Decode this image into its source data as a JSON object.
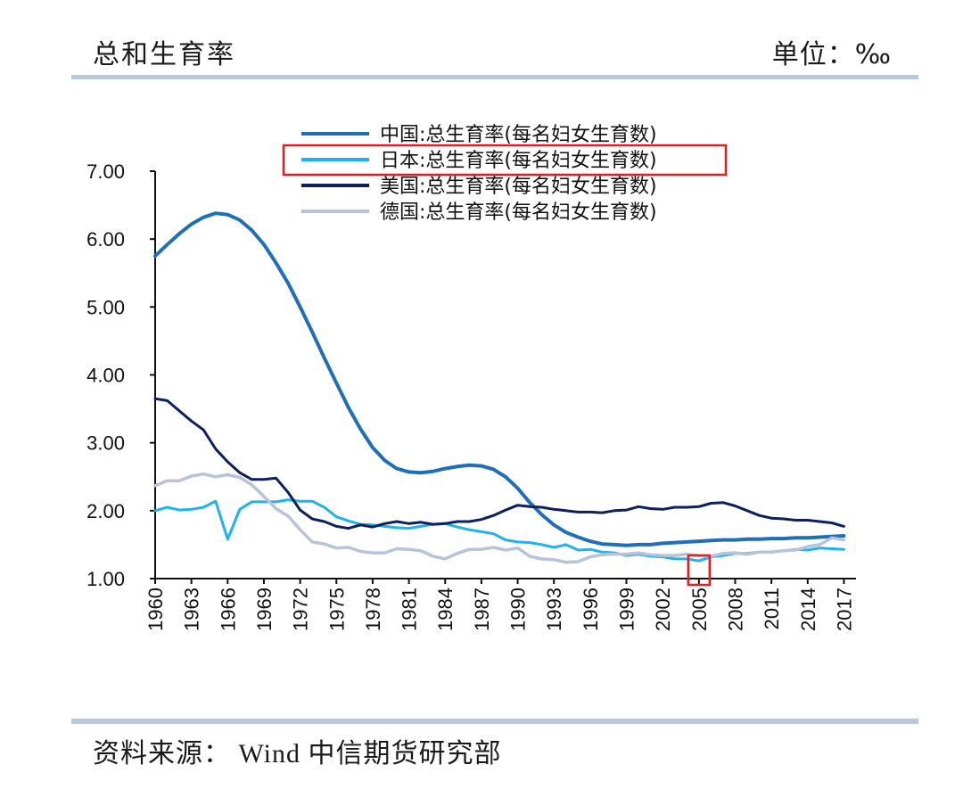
{
  "header": {
    "title": "总和生育率",
    "unit": "单位：‰"
  },
  "footer": {
    "source": "资料来源：  Wind  中信期货研究部"
  },
  "highlight_boxes": [
    {
      "target": "legend",
      "series": "日本:总生育率(每名妇女生育数)",
      "color": "#e02020"
    },
    {
      "target": "x-axis",
      "year": 2005,
      "color": "#e02020"
    }
  ],
  "chart_data": {
    "type": "line",
    "title": "总和生育率",
    "xlabel": "",
    "ylabel": "",
    "ylim": [
      1.0,
      7.0
    ],
    "yticks": [
      "1.00",
      "2.00",
      "3.00",
      "4.00",
      "5.00",
      "6.00",
      "7.00"
    ],
    "xlim": [
      1960,
      2018
    ],
    "xticks": [
      "1960",
      "1963",
      "1966",
      "1969",
      "1972",
      "1975",
      "1978",
      "1981",
      "1984",
      "1987",
      "1990",
      "1993",
      "1996",
      "1999",
      "2002",
      "2005",
      "2008",
      "2011",
      "2014",
      "2017"
    ],
    "legend_position": "top-center",
    "series": [
      {
        "name": "中国:总生育率(每名妇女生育数)",
        "color": "#1f6fb8",
        "width": 4,
        "x": [
          1960,
          1961,
          1962,
          1963,
          1964,
          1965,
          1966,
          1967,
          1968,
          1969,
          1970,
          1971,
          1972,
          1973,
          1974,
          1975,
          1976,
          1977,
          1978,
          1979,
          1980,
          1981,
          1982,
          1983,
          1984,
          1985,
          1986,
          1987,
          1988,
          1989,
          1990,
          1991,
          1992,
          1993,
          1994,
          1995,
          1996,
          1997,
          1998,
          1999,
          2000,
          2001,
          2002,
          2003,
          2004,
          2005,
          2006,
          2007,
          2008,
          2009,
          2010,
          2011,
          2012,
          2013,
          2014,
          2015,
          2016,
          2017
        ],
        "values": [
          5.75,
          5.92,
          6.08,
          6.22,
          6.32,
          6.38,
          6.36,
          6.28,
          6.13,
          5.92,
          5.65,
          5.35,
          5.0,
          4.63,
          4.25,
          3.88,
          3.52,
          3.2,
          2.93,
          2.74,
          2.62,
          2.57,
          2.56,
          2.58,
          2.62,
          2.65,
          2.67,
          2.66,
          2.61,
          2.5,
          2.33,
          2.12,
          1.94,
          1.79,
          1.68,
          1.61,
          1.55,
          1.51,
          1.5,
          1.49,
          1.5,
          1.5,
          1.52,
          1.53,
          1.54,
          1.55,
          1.56,
          1.57,
          1.57,
          1.58,
          1.58,
          1.59,
          1.59,
          1.6,
          1.6,
          1.61,
          1.62,
          1.63
        ]
      },
      {
        "name": "日本:总生育率(每名妇女生育数)",
        "color": "#1eb3ea",
        "width": 3,
        "x": [
          1960,
          1961,
          1962,
          1963,
          1964,
          1965,
          1966,
          1967,
          1968,
          1969,
          1970,
          1971,
          1972,
          1973,
          1974,
          1975,
          1976,
          1977,
          1978,
          1979,
          1980,
          1981,
          1982,
          1983,
          1984,
          1985,
          1986,
          1987,
          1988,
          1989,
          1990,
          1991,
          1992,
          1993,
          1994,
          1995,
          1996,
          1997,
          1998,
          1999,
          2000,
          2001,
          2002,
          2003,
          2004,
          2005,
          2006,
          2007,
          2008,
          2009,
          2010,
          2011,
          2012,
          2013,
          2014,
          2015,
          2016,
          2017
        ],
        "values": [
          2.0,
          2.05,
          2.01,
          2.02,
          2.05,
          2.14,
          1.58,
          2.02,
          2.13,
          2.13,
          2.13,
          2.16,
          2.14,
          2.14,
          2.05,
          1.91,
          1.85,
          1.8,
          1.79,
          1.77,
          1.75,
          1.74,
          1.77,
          1.8,
          1.81,
          1.76,
          1.72,
          1.69,
          1.66,
          1.57,
          1.54,
          1.53,
          1.5,
          1.46,
          1.5,
          1.42,
          1.43,
          1.39,
          1.38,
          1.34,
          1.36,
          1.33,
          1.32,
          1.29,
          1.29,
          1.26,
          1.32,
          1.34,
          1.37,
          1.37,
          1.39,
          1.39,
          1.41,
          1.43,
          1.42,
          1.45,
          1.44,
          1.43
        ]
      },
      {
        "name": "美国:总生育率(每名妇女生育数)",
        "color": "#0d1f5c",
        "width": 3,
        "x": [
          1960,
          1961,
          1962,
          1963,
          1964,
          1965,
          1966,
          1967,
          1968,
          1969,
          1970,
          1971,
          1972,
          1973,
          1974,
          1975,
          1976,
          1977,
          1978,
          1979,
          1980,
          1981,
          1982,
          1983,
          1984,
          1985,
          1986,
          1987,
          1988,
          1989,
          1990,
          1991,
          1992,
          1993,
          1994,
          1995,
          1996,
          1997,
          1998,
          1999,
          2000,
          2001,
          2002,
          2003,
          2004,
          2005,
          2006,
          2007,
          2008,
          2009,
          2010,
          2011,
          2012,
          2013,
          2014,
          2015,
          2016,
          2017
        ],
        "values": [
          3.65,
          3.62,
          3.47,
          3.32,
          3.19,
          2.91,
          2.72,
          2.56,
          2.46,
          2.46,
          2.48,
          2.27,
          2.01,
          1.88,
          1.84,
          1.77,
          1.74,
          1.79,
          1.76,
          1.81,
          1.84,
          1.81,
          1.83,
          1.8,
          1.81,
          1.84,
          1.84,
          1.87,
          1.93,
          2.01,
          2.08,
          2.06,
          2.05,
          2.02,
          2.0,
          1.98,
          1.98,
          1.97,
          2.0,
          2.01,
          2.06,
          2.03,
          2.02,
          2.05,
          2.05,
          2.06,
          2.11,
          2.12,
          2.07,
          2.0,
          1.93,
          1.89,
          1.88,
          1.86,
          1.86,
          1.84,
          1.82,
          1.77
        ]
      },
      {
        "name": "德国:总生育率(每名妇女生育数)",
        "color": "#b8c3da",
        "width": 3.5,
        "x": [
          1960,
          1961,
          1962,
          1963,
          1964,
          1965,
          1966,
          1967,
          1968,
          1969,
          1970,
          1971,
          1972,
          1973,
          1974,
          1975,
          1976,
          1977,
          1978,
          1979,
          1980,
          1981,
          1982,
          1983,
          1984,
          1985,
          1986,
          1987,
          1988,
          1989,
          1990,
          1991,
          1992,
          1993,
          1994,
          1995,
          1996,
          1997,
          1998,
          1999,
          2000,
          2001,
          2002,
          2003,
          2004,
          2005,
          2006,
          2007,
          2008,
          2009,
          2010,
          2011,
          2012,
          2013,
          2014,
          2015,
          2016,
          2017
        ],
        "values": [
          2.37,
          2.44,
          2.44,
          2.51,
          2.54,
          2.5,
          2.53,
          2.49,
          2.38,
          2.21,
          2.03,
          1.92,
          1.72,
          1.54,
          1.51,
          1.45,
          1.46,
          1.4,
          1.38,
          1.38,
          1.44,
          1.43,
          1.41,
          1.33,
          1.29,
          1.37,
          1.43,
          1.43,
          1.46,
          1.42,
          1.45,
          1.33,
          1.29,
          1.28,
          1.24,
          1.25,
          1.32,
          1.35,
          1.36,
          1.36,
          1.38,
          1.35,
          1.34,
          1.34,
          1.36,
          1.34,
          1.33,
          1.37,
          1.38,
          1.36,
          1.39,
          1.39,
          1.41,
          1.42,
          1.47,
          1.5,
          1.6,
          1.57
        ]
      }
    ]
  }
}
